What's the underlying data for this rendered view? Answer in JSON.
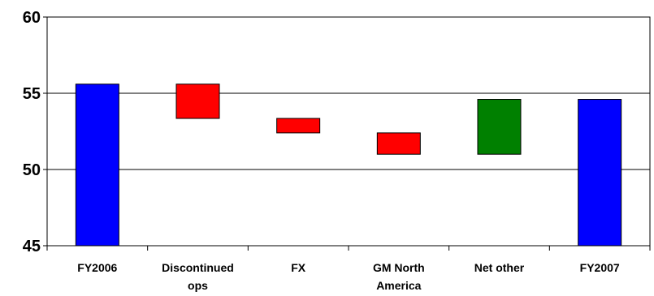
{
  "chart_data": {
    "type": "bar",
    "subtype": "waterfall",
    "categories": [
      "FY2006",
      "Discontinued ops",
      "FX",
      "GM North America",
      "Net other",
      "FY2007"
    ],
    "category_labels": [
      [
        "FY2006"
      ],
      [
        "Discontinued",
        "ops"
      ],
      [
        "FX"
      ],
      [
        "GM North",
        "America"
      ],
      [
        "Net other"
      ],
      [
        "FY2007"
      ]
    ],
    "bars": [
      {
        "category": "FY2006",
        "start": 45,
        "end": 55.6,
        "kind": "total"
      },
      {
        "category": "Discontinued ops",
        "start": 55.6,
        "end": 53.35,
        "kind": "decrease"
      },
      {
        "category": "FX",
        "start": 53.35,
        "end": 52.4,
        "kind": "decrease"
      },
      {
        "category": "GM North America",
        "start": 52.4,
        "end": 51.0,
        "kind": "decrease"
      },
      {
        "category": "Net other",
        "start": 51.0,
        "end": 54.6,
        "kind": "increase"
      },
      {
        "category": "FY2007",
        "start": 45,
        "end": 54.6,
        "kind": "total"
      }
    ],
    "ylim": [
      45,
      60
    ],
    "yticks": [
      45,
      50,
      55,
      60
    ],
    "grid": true,
    "legend": "none",
    "colors": {
      "total": "#0000FF",
      "decrease": "#FF0000",
      "increase": "#008000",
      "outline": "#000000"
    }
  }
}
